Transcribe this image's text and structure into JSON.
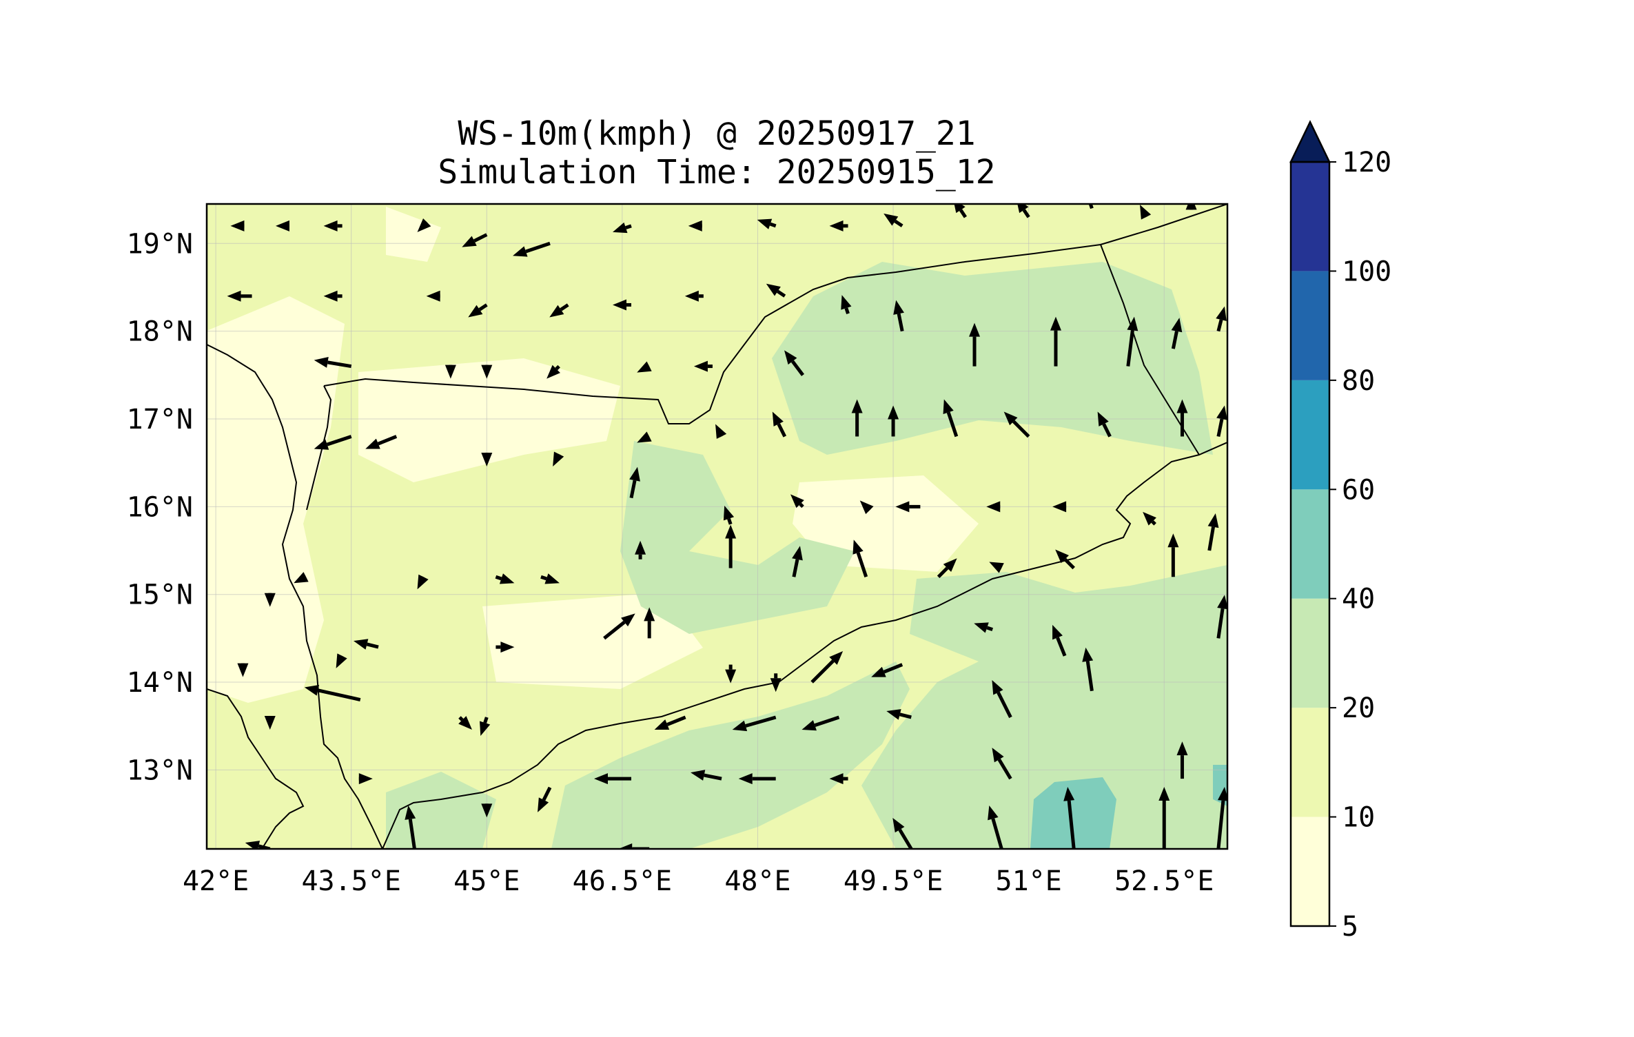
{
  "title_line1": "WS-10m(kmph) @ 20250917_21",
  "title_line2": "Simulation Time: 20250915_12",
  "x_tick_labels": [
    "42°E",
    "43.5°E",
    "45°E",
    "46.5°E",
    "48°E",
    "49.5°E",
    "51°E",
    "52.5°E"
  ],
  "y_tick_labels": [
    "19°N",
    "18°N",
    "17°N",
    "16°N",
    "15°N",
    "14°N",
    "13°N"
  ],
  "colorbar": {
    "extend": "max",
    "levels": [
      5,
      10,
      20,
      40,
      60,
      80,
      100,
      120
    ],
    "tick_labels": [
      "5",
      "10",
      "20",
      "40",
      "60",
      "80",
      "100",
      "120"
    ],
    "colors": [
      "#ffffd9",
      "#edf8b1",
      "#c7e9b4",
      "#7fcdbb",
      "#2c9fbf",
      "#2166ac",
      "#253494",
      "#081d58"
    ]
  },
  "chart_data": {
    "type": "heatmap",
    "title": "WS-10m(kmph) @ 20250917_21\nSimulation Time: 20250915_12",
    "xlabel": "",
    "ylabel": "",
    "xlim": [
      41.9,
      53.2
    ],
    "ylim": [
      12.1,
      19.45
    ],
    "grid": true,
    "legend_placement": "right colorbar",
    "field": "10 m wind speed (kmph) with wind-direction arrows",
    "arrows_lon_lat_u_v": [
      [
        42.3,
        19.2,
        -2,
        0
      ],
      [
        42.8,
        19.2,
        -2,
        0
      ],
      [
        43.4,
        19.2,
        -3,
        0
      ],
      [
        44.3,
        19.2,
        -1,
        -1
      ],
      [
        45.0,
        19.1,
        -4,
        -2
      ],
      [
        45.7,
        19.0,
        -6,
        -2
      ],
      [
        46.6,
        19.2,
        -3,
        -1
      ],
      [
        47.3,
        19.2,
        -1,
        0
      ],
      [
        48.2,
        19.2,
        -3,
        1
      ],
      [
        49.0,
        19.2,
        -3,
        0
      ],
      [
        49.6,
        19.2,
        -3,
        2
      ],
      [
        50.3,
        19.3,
        -2,
        3
      ],
      [
        51.0,
        19.3,
        -2,
        3
      ],
      [
        51.7,
        19.4,
        -1,
        3
      ],
      [
        52.3,
        19.3,
        -1,
        2
      ],
      [
        52.8,
        19.4,
        0,
        2
      ],
      [
        42.4,
        18.4,
        -4,
        0
      ],
      [
        43.4,
        18.4,
        -3,
        0
      ],
      [
        44.4,
        18.4,
        -1,
        0
      ],
      [
        45.0,
        18.3,
        -3,
        -2
      ],
      [
        45.9,
        18.3,
        -3,
        -2
      ],
      [
        46.6,
        18.3,
        -3,
        0
      ],
      [
        47.4,
        18.4,
        -3,
        0
      ],
      [
        48.3,
        18.4,
        -3,
        2
      ],
      [
        49.0,
        18.2,
        -1,
        3
      ],
      [
        49.6,
        18.0,
        -1,
        5
      ],
      [
        50.4,
        17.6,
        0,
        7
      ],
      [
        51.3,
        17.6,
        0,
        8
      ],
      [
        52.1,
        17.6,
        1,
        8
      ],
      [
        52.6,
        17.8,
        1,
        5
      ],
      [
        53.1,
        18.0,
        1,
        4
      ],
      [
        43.5,
        17.6,
        -6,
        1
      ],
      [
        44.6,
        17.6,
        0,
        -2
      ],
      [
        45.0,
        17.6,
        0,
        -2
      ],
      [
        45.8,
        17.6,
        -2,
        -2
      ],
      [
        46.8,
        17.6,
        -2,
        -1
      ],
      [
        47.5,
        17.6,
        -3,
        0
      ],
      [
        48.5,
        17.5,
        -3,
        4
      ],
      [
        49.1,
        16.8,
        0,
        6
      ],
      [
        49.5,
        16.8,
        0,
        5
      ],
      [
        50.2,
        16.8,
        -2,
        6
      ],
      [
        51.0,
        16.8,
        -4,
        4
      ],
      [
        51.9,
        16.8,
        -2,
        4
      ],
      [
        52.7,
        16.8,
        0,
        6
      ],
      [
        53.1,
        16.8,
        1,
        5
      ],
      [
        43.5,
        16.8,
        -6,
        -2
      ],
      [
        44.0,
        16.8,
        -5,
        -2
      ],
      [
        45.0,
        16.6,
        0,
        -2
      ],
      [
        45.8,
        16.6,
        -1,
        -2
      ],
      [
        46.8,
        16.8,
        -2,
        -1
      ],
      [
        47.6,
        16.8,
        -1,
        2
      ],
      [
        48.3,
        16.8,
        -2,
        4
      ],
      [
        46.6,
        16.1,
        1,
        5
      ],
      [
        47.7,
        15.3,
        0,
        7
      ],
      [
        48.5,
        16.0,
        -2,
        2
      ],
      [
        49.2,
        16.0,
        -1,
        1
      ],
      [
        49.8,
        16.0,
        -4,
        0
      ],
      [
        50.6,
        16.0,
        -1,
        0
      ],
      [
        51.4,
        16.0,
        -2,
        0
      ],
      [
        52.4,
        15.8,
        -2,
        2
      ],
      [
        52.6,
        15.2,
        0,
        7
      ],
      [
        53.0,
        15.5,
        1,
        6
      ],
      [
        53.1,
        14.5,
        1,
        7
      ],
      [
        42.6,
        15.0,
        0,
        -2
      ],
      [
        43.0,
        15.2,
        -2,
        -1
      ],
      [
        44.3,
        15.2,
        -1,
        -2
      ],
      [
        45.1,
        15.2,
        3,
        -1
      ],
      [
        45.6,
        15.2,
        3,
        -1
      ],
      [
        46.1,
        15.2,
        0,
        0
      ],
      [
        46.7,
        15.4,
        0,
        3
      ],
      [
        47.7,
        15.8,
        -1,
        3
      ],
      [
        48.4,
        15.2,
        1,
        5
      ],
      [
        49.2,
        15.2,
        -2,
        6
      ],
      [
        50.0,
        15.2,
        3,
        3
      ],
      [
        50.7,
        15.3,
        -2,
        1
      ],
      [
        51.5,
        15.3,
        -3,
        3
      ],
      [
        42.3,
        14.2,
        0,
        -2
      ],
      [
        43.4,
        14.3,
        -1,
        -2
      ],
      [
        43.8,
        14.4,
        -4,
        1
      ],
      [
        45.1,
        14.4,
        3,
        0
      ],
      [
        46.3,
        14.5,
        5,
        4
      ],
      [
        46.8,
        14.5,
        0,
        5
      ],
      [
        47.7,
        14.2,
        0,
        -3
      ],
      [
        48.2,
        14.1,
        0,
        -3
      ],
      [
        48.6,
        14.0,
        5,
        5
      ],
      [
        49.6,
        14.2,
        -5,
        -2
      ],
      [
        50.6,
        14.6,
        -3,
        1
      ],
      [
        50.8,
        13.6,
        -3,
        6
      ],
      [
        51.4,
        14.3,
        -2,
        5
      ],
      [
        51.7,
        13.9,
        -1,
        7
      ],
      [
        43.6,
        13.8,
        -9,
        2
      ],
      [
        42.6,
        13.6,
        0,
        -2
      ],
      [
        44.7,
        13.6,
        2,
        -2
      ],
      [
        45.0,
        13.6,
        -1,
        -3
      ],
      [
        47.2,
        13.6,
        -5,
        -2
      ],
      [
        48.2,
        13.6,
        -7,
        -2
      ],
      [
        48.9,
        13.6,
        -6,
        -2
      ],
      [
        49.7,
        13.6,
        -4,
        1
      ],
      [
        50.8,
        12.9,
        -3,
        5
      ],
      [
        51.5,
        12.1,
        -1,
        10
      ],
      [
        52.5,
        12.1,
        0,
        10
      ],
      [
        52.7,
        12.9,
        0,
        6
      ],
      [
        53.1,
        12.1,
        1,
        10
      ],
      [
        43.6,
        12.9,
        2,
        0
      ],
      [
        44.2,
        12.1,
        -1,
        7
      ],
      [
        45.0,
        12.6,
        0,
        -2
      ],
      [
        45.7,
        12.8,
        -2,
        -4
      ],
      [
        46.6,
        12.9,
        -6,
        0
      ],
      [
        47.6,
        12.9,
        -5,
        1
      ],
      [
        48.2,
        12.9,
        -6,
        0
      ],
      [
        49.0,
        12.9,
        -3,
        0
      ],
      [
        49.7,
        12.1,
        -3,
        5
      ],
      [
        50.7,
        12.1,
        -2,
        7
      ],
      [
        42.6,
        12.1,
        -4,
        1
      ],
      [
        46.8,
        12.1,
        -5,
        0
      ]
    ]
  }
}
